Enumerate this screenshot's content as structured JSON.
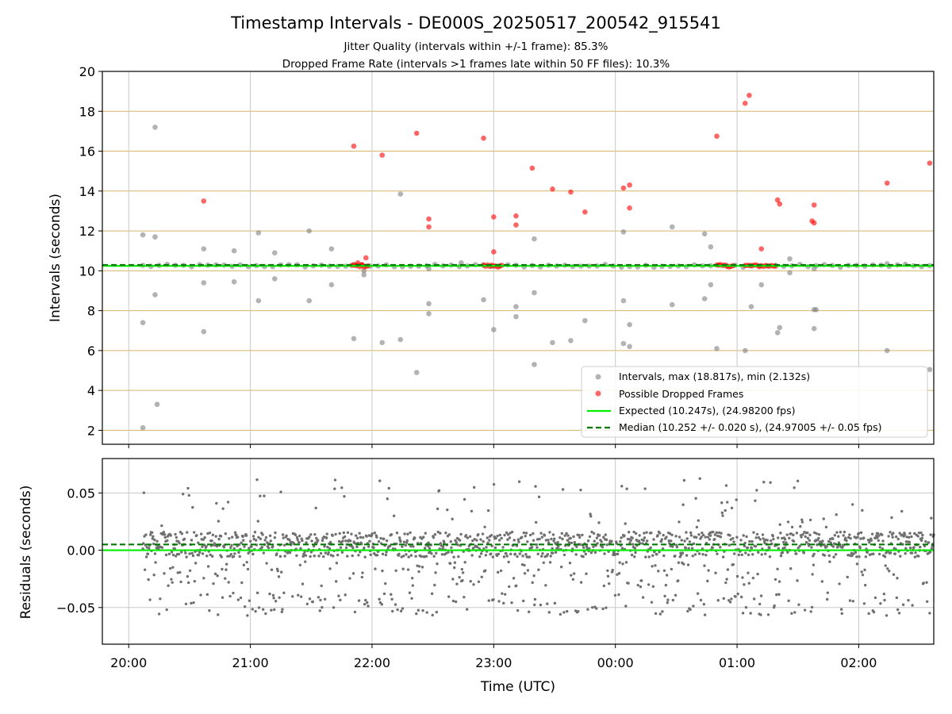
{
  "chart_data": [
    {
      "type": "scatter",
      "title": "Timestamp Intervals - DE000S_20250517_200542_915541",
      "subtitles": [
        "Jitter Quality (intervals within +/-1 frame): 85.3%",
        "Dropped Frame Rate (intervals >1 frames late within 50 FF files): 10.3%"
      ],
      "ylabel": "Intervals (seconds)",
      "xlim": [
        "19:47",
        "02:37"
      ],
      "ylim": [
        1.3,
        20
      ],
      "yticks": [
        2,
        4,
        6,
        8,
        10,
        12,
        14,
        16,
        18,
        20
      ],
      "grid": true,
      "legend_position": "lower-right",
      "colors": {
        "intervals": "#808080",
        "dropped": "#ff0000",
        "expected": "#00ee00",
        "median": "#007a00",
        "hgrid": "#d4b56a",
        "vgrid": "#c8c8c8"
      },
      "expected_value": 10.247,
      "median_value": 10.252,
      "legend": [
        "Intervals, max (18.817s), min (2.132s)",
        "Possible Dropped Frames",
        "Expected (10.247s), (24.98200 fps)",
        "Median (10.252 +/- 0.020 s), (24.97005 +/- 0.05 fps)"
      ],
      "series": [
        {
          "name": "Intervals, max (18.817s), min (2.132s)",
          "points": [
            [
              "20:07",
              11.8
            ],
            [
              "20:07",
              7.4
            ],
            [
              "20:07",
              2.13
            ],
            [
              "20:13",
              17.2
            ],
            [
              "20:13",
              11.7
            ],
            [
              "20:13",
              8.8
            ],
            [
              "20:14",
              3.3
            ],
            [
              "20:37",
              11.1
            ],
            [
              "20:37",
              9.4
            ],
            [
              "20:37",
              6.95
            ],
            [
              "20:52",
              11.0
            ],
            [
              "20:52",
              9.45
            ],
            [
              "21:04",
              11.9
            ],
            [
              "21:04",
              8.5
            ],
            [
              "21:12",
              10.9
            ],
            [
              "21:12",
              9.6
            ],
            [
              "21:29",
              12.0
            ],
            [
              "21:29",
              8.5
            ],
            [
              "21:40",
              11.1
            ],
            [
              "21:40",
              9.3
            ],
            [
              "21:51",
              6.6
            ],
            [
              "21:56",
              10.0
            ],
            [
              "21:56",
              9.8
            ],
            [
              "22:05",
              6.4
            ],
            [
              "22:14",
              13.85
            ],
            [
              "22:14",
              6.55
            ],
            [
              "22:22",
              4.9
            ],
            [
              "22:28",
              10.1
            ],
            [
              "22:28",
              8.35
            ],
            [
              "22:28",
              7.85
            ],
            [
              "22:44",
              10.4
            ],
            [
              "22:55",
              8.55
            ],
            [
              "23:00",
              7.05
            ],
            [
              "23:11",
              8.2
            ],
            [
              "23:11",
              7.7
            ],
            [
              "23:20",
              11.6
            ],
            [
              "23:20",
              8.9
            ],
            [
              "23:20",
              5.3
            ],
            [
              "23:29",
              6.4
            ],
            [
              "23:38",
              6.5
            ],
            [
              "23:45",
              7.5
            ],
            [
              "00:04",
              11.95
            ],
            [
              "00:04",
              8.5
            ],
            [
              "00:04",
              6.35
            ],
            [
              "00:07",
              7.3
            ],
            [
              "00:07",
              6.2
            ],
            [
              "00:28",
              12.2
            ],
            [
              "00:28",
              8.3
            ],
            [
              "00:44",
              11.85
            ],
            [
              "00:44",
              8.6
            ],
            [
              "00:47",
              11.2
            ],
            [
              "00:47",
              9.3
            ],
            [
              "00:50",
              6.1
            ],
            [
              "01:04",
              6.0
            ],
            [
              "01:07",
              8.2
            ],
            [
              "01:12",
              9.3
            ],
            [
              "01:20",
              6.9
            ],
            [
              "01:21",
              7.15
            ],
            [
              "01:26",
              10.6
            ],
            [
              "01:26",
              9.9
            ],
            [
              "01:38",
              8.05
            ],
            [
              "01:39",
              8.05
            ],
            [
              "01:38",
              10.1
            ],
            [
              "01:38",
              7.1
            ],
            [
              "02:14",
              10.35
            ],
            [
              "02:14",
              6.0
            ],
            [
              "02:35",
              5.05
            ]
          ]
        },
        {
          "name": "Possible Dropped Frames",
          "points": [
            [
              "20:37",
              13.5
            ],
            [
              "21:51",
              16.25
            ],
            [
              "21:53",
              10.4
            ],
            [
              "21:55",
              10.3
            ],
            [
              "21:57",
              10.65
            ],
            [
              "22:05",
              15.8
            ],
            [
              "22:22",
              16.9
            ],
            [
              "22:28",
              12.6
            ],
            [
              "22:28",
              12.2
            ],
            [
              "22:55",
              16.65
            ],
            [
              "23:00",
              12.7
            ],
            [
              "23:00",
              10.95
            ],
            [
              "23:11",
              12.75
            ],
            [
              "23:11",
              12.3
            ],
            [
              "23:19",
              15.15
            ],
            [
              "23:29",
              14.1
            ],
            [
              "23:38",
              13.95
            ],
            [
              "23:45",
              12.95
            ],
            [
              "00:04",
              14.15
            ],
            [
              "00:07",
              14.3
            ],
            [
              "00:07",
              13.15
            ],
            [
              "00:50",
              16.75
            ],
            [
              "01:04",
              18.4
            ],
            [
              "01:06",
              18.8
            ],
            [
              "01:12",
              11.1
            ],
            [
              "01:20",
              13.55
            ],
            [
              "01:21",
              13.35
            ],
            [
              "01:37",
              12.5
            ],
            [
              "01:38",
              12.4
            ],
            [
              "01:38",
              13.3
            ],
            [
              "02:14",
              14.4
            ],
            [
              "02:35",
              15.4
            ]
          ]
        }
      ]
    },
    {
      "type": "scatter",
      "ylabel": "Residuals (seconds)",
      "xlabel": "Time (UTC)",
      "xlim": [
        "19:47",
        "02:37"
      ],
      "ylim": [
        -0.082,
        0.08
      ],
      "yticks": [
        0.05,
        0.0,
        -0.05
      ],
      "ytick_labels": [
        "0.05",
        "0.00",
        "−0.05"
      ],
      "xticks": [
        "20:00",
        "21:00",
        "22:00",
        "23:00",
        "00:00",
        "01:00",
        "02:00"
      ],
      "grid": true,
      "expected_line": 0.0,
      "median_line": 0.005,
      "residual_range": [
        -0.057,
        0.063
      ],
      "n_points": 1560,
      "colors": {
        "residuals": "#707070"
      }
    }
  ]
}
